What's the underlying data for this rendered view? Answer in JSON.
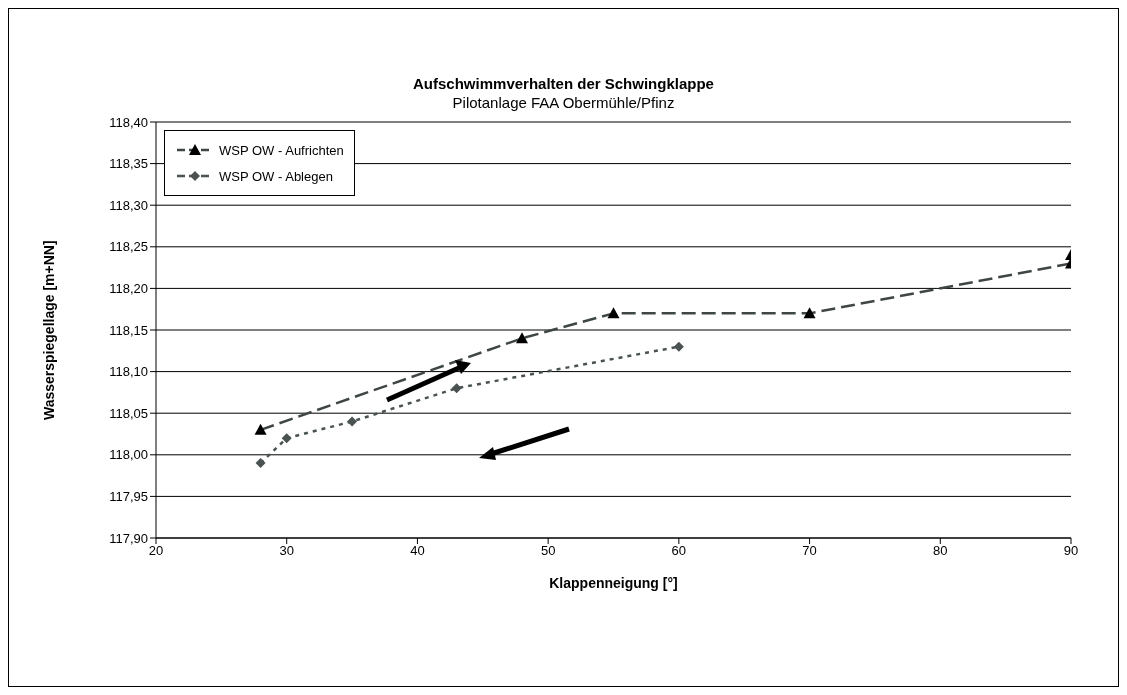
{
  "chart_data": {
    "type": "line",
    "title": "Aufschwimmverhalten der Schwingklappe",
    "subtitle": "Pilotanlage FAA Obermühle/Pfinz",
    "xlabel": "Klappenneigung [°]",
    "ylabel": "Wasserspiegellage [m+NN]",
    "series": [
      {
        "name": "WSP OW - Aufrichten",
        "color": "#3f4646",
        "marker": "triangle",
        "line_style": "dashed",
        "x": [
          28,
          48,
          55,
          70,
          90,
          90
        ],
        "values": [
          118.03,
          118.14,
          118.17,
          118.17,
          118.23,
          118.24
        ]
      },
      {
        "name": "WSP OW - Ablegen",
        "color": "#4a5252",
        "marker": "diamond",
        "line_style": "dotted",
        "x": [
          28,
          30,
          35,
          43,
          60
        ],
        "values": [
          117.99,
          118.02,
          118.04,
          118.08,
          118.13
        ]
      }
    ],
    "xlim": [
      20,
      90
    ],
    "xticks": [
      20,
      30,
      40,
      50,
      60,
      70,
      80,
      90
    ],
    "ylim": [
      117.9,
      118.4
    ],
    "yticks": [
      {
        "value": 117.9,
        "label": "117,90"
      },
      {
        "value": 117.95,
        "label": "117,95"
      },
      {
        "value": 118.0,
        "label": "118,00"
      },
      {
        "value": 118.05,
        "label": "118,05"
      },
      {
        "value": 118.1,
        "label": "118,10"
      },
      {
        "value": 118.15,
        "label": "118,15"
      },
      {
        "value": 118.2,
        "label": "118,20"
      },
      {
        "value": 118.25,
        "label": "118,25"
      },
      {
        "value": 118.3,
        "label": "118,30"
      },
      {
        "value": 118.35,
        "label": "118,35"
      },
      {
        "value": 118.4,
        "label": "118,40"
      }
    ],
    "grid": "y",
    "legend": "top left"
  }
}
